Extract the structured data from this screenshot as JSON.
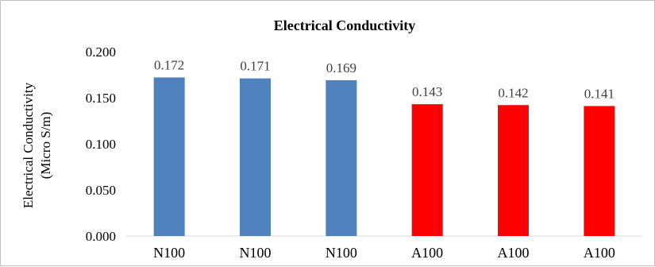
{
  "chart_data": {
    "type": "bar",
    "title": "Electrical Conductivity",
    "ylabel": "Electrical Conductivity",
    "ylabel_unit": "(Micro S/m)",
    "xlabel": "",
    "categories": [
      "N100",
      "N100",
      "N100",
      "A100",
      "A100",
      "A100"
    ],
    "values": [
      0.172,
      0.171,
      0.169,
      0.143,
      0.142,
      0.141
    ],
    "data_labels": [
      "0.172",
      "0.171",
      "0.169",
      "0.143",
      "0.142",
      "0.141"
    ],
    "bar_colors": [
      "#4f81bd",
      "#4f81bd",
      "#4f81bd",
      "#ff0000",
      "#ff0000",
      "#ff0000"
    ],
    "ylim": [
      0,
      0.2
    ],
    "yticks": [
      0,
      0.05,
      0.1,
      0.15,
      0.2
    ],
    "ytick_labels": [
      "0.000",
      "0.050",
      "0.100",
      "0.150",
      "0.200"
    ],
    "grid": false,
    "legend": "none"
  }
}
